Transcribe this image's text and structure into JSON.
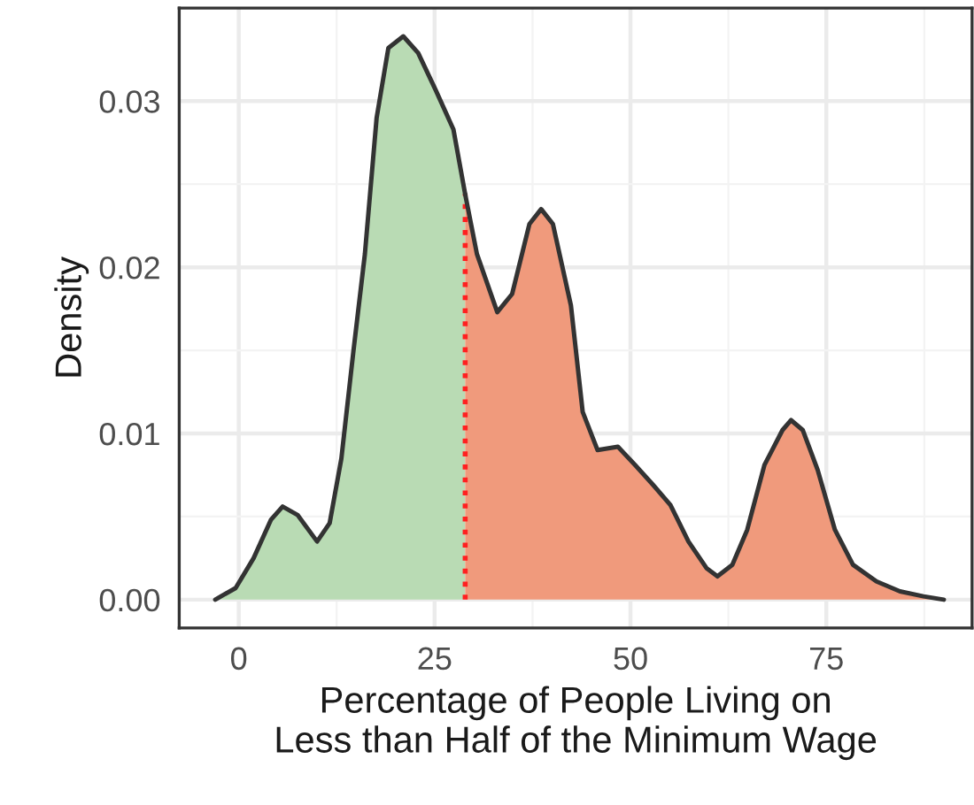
{
  "chart_data": {
    "type": "area",
    "xlabel": "Percentage of People Living on\nLess than Half of the Minimum Wage",
    "ylabel": "Density",
    "series": [
      {
        "color": "#b9dbb4",
        "x": [
          -3,
          -0.4,
          1.9,
          4.1,
          5.6,
          7.5,
          10,
          11.6,
          13.1,
          14.6,
          16.1,
          17.6,
          19.1,
          21,
          22.9,
          25.1,
          27.4,
          28.9
        ],
        "values": [
          0,
          0.0007,
          0.0025,
          0.0048,
          0.0056,
          0.0051,
          0.0035,
          0.0046,
          0.0085,
          0.0148,
          0.0208,
          0.029,
          0.0332,
          0.0339,
          0.0329,
          0.0307,
          0.0283,
          0.0244
        ]
      },
      {
        "color": "#f09a7c",
        "x": [
          28.9,
          30.4,
          33,
          34.9,
          37.1,
          38.6,
          40.1,
          42.4,
          43.9,
          45.8,
          48.4,
          50.6,
          52.9,
          55.1,
          57.4,
          59.7,
          61.1,
          63,
          64.9,
          67.1,
          69.4,
          70.5,
          72,
          73.9,
          76.1,
          78.4,
          81.4,
          84.4,
          87.4,
          90
        ],
        "values": [
          0.0244,
          0.0208,
          0.0173,
          0.0184,
          0.0226,
          0.0235,
          0.0226,
          0.0177,
          0.0113,
          0.009,
          0.0092,
          0.0081,
          0.0069,
          0.0057,
          0.0035,
          0.0019,
          0.0014,
          0.0021,
          0.0042,
          0.0081,
          0.0102,
          0.0108,
          0.0102,
          0.0078,
          0.0042,
          0.0021,
          0.0011,
          0.0005,
          0.0002,
          0
        ]
      }
    ],
    "ref_lines": [
      {
        "axis": "x",
        "value": 28.9,
        "color": "#ff2020",
        "line_style": "dotted"
      }
    ],
    "xlim": [
      -7.6,
      93.6
    ],
    "xticks": [
      0,
      25,
      50,
      75
    ],
    "ylim": [
      -0.0017,
      0.0356
    ],
    "yticks": [
      {
        "value": 0,
        "label": "0.00"
      },
      {
        "value": 0.01,
        "label": "0.01"
      },
      {
        "value": 0.02,
        "label": "0.02"
      },
      {
        "value": 0.03,
        "label": "0.03"
      }
    ],
    "grid": true,
    "line_style": "solid"
  }
}
